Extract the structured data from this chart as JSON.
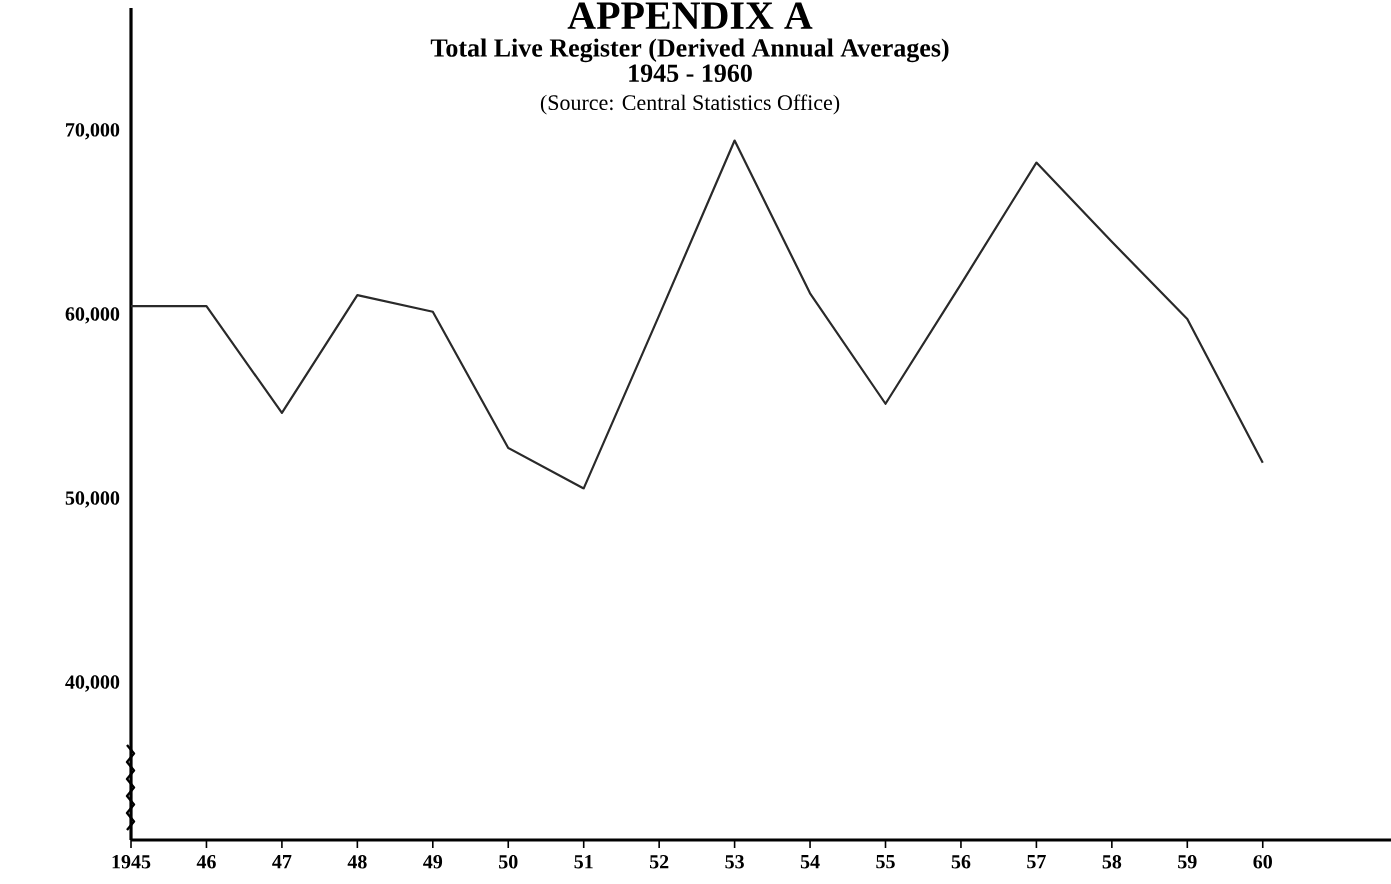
{
  "chart_data": {
    "type": "line",
    "title": "APPENDIX A",
    "subtitle": "Total Live Register (Derived Annual Averages)",
    "annotations": [
      "1945 - 1960",
      "(Source: Central Statistics Office)"
    ],
    "x": [
      1945,
      1946,
      1947,
      1948,
      1949,
      1950,
      1951,
      1952,
      1953,
      1954,
      1955,
      1956,
      1957,
      1958,
      1959,
      1960
    ],
    "series": [
      {
        "color": "#2a2a2a",
        "values": [
          60500,
          60500,
          54700,
          61100,
          60200,
          52800,
          50600,
          60000,
          69500,
          61200,
          55200,
          61700,
          68300,
          64000,
          59800,
          52000
        ]
      }
    ],
    "xlim": [
      1945,
      1961.7
    ],
    "ylim": [
      31500,
      76700
    ],
    "xticks": [
      {
        "value": 1945,
        "label": "1945"
      },
      {
        "value": 1946,
        "label": "46"
      },
      {
        "value": 1947,
        "label": "47"
      },
      {
        "value": 1948,
        "label": "48"
      },
      {
        "value": 1949,
        "label": "49"
      },
      {
        "value": 1950,
        "label": "50"
      },
      {
        "value": 1951,
        "label": "51"
      },
      {
        "value": 1952,
        "label": "52"
      },
      {
        "value": 1953,
        "label": "53"
      },
      {
        "value": 1954,
        "label": "54"
      },
      {
        "value": 1955,
        "label": "55"
      },
      {
        "value": 1956,
        "label": "56"
      },
      {
        "value": 1957,
        "label": "57"
      },
      {
        "value": 1958,
        "label": "58"
      },
      {
        "value": 1959,
        "label": "59"
      },
      {
        "value": 1960,
        "label": "60"
      }
    ],
    "yticks": [
      {
        "value": 40000,
        "label": "40,000"
      },
      {
        "value": 50000,
        "label": "50,000"
      },
      {
        "value": 60000,
        "label": "60,000"
      },
      {
        "value": 70000,
        "label": "70,000"
      }
    ],
    "grid": false,
    "marker": "none",
    "line_style": "solid"
  }
}
